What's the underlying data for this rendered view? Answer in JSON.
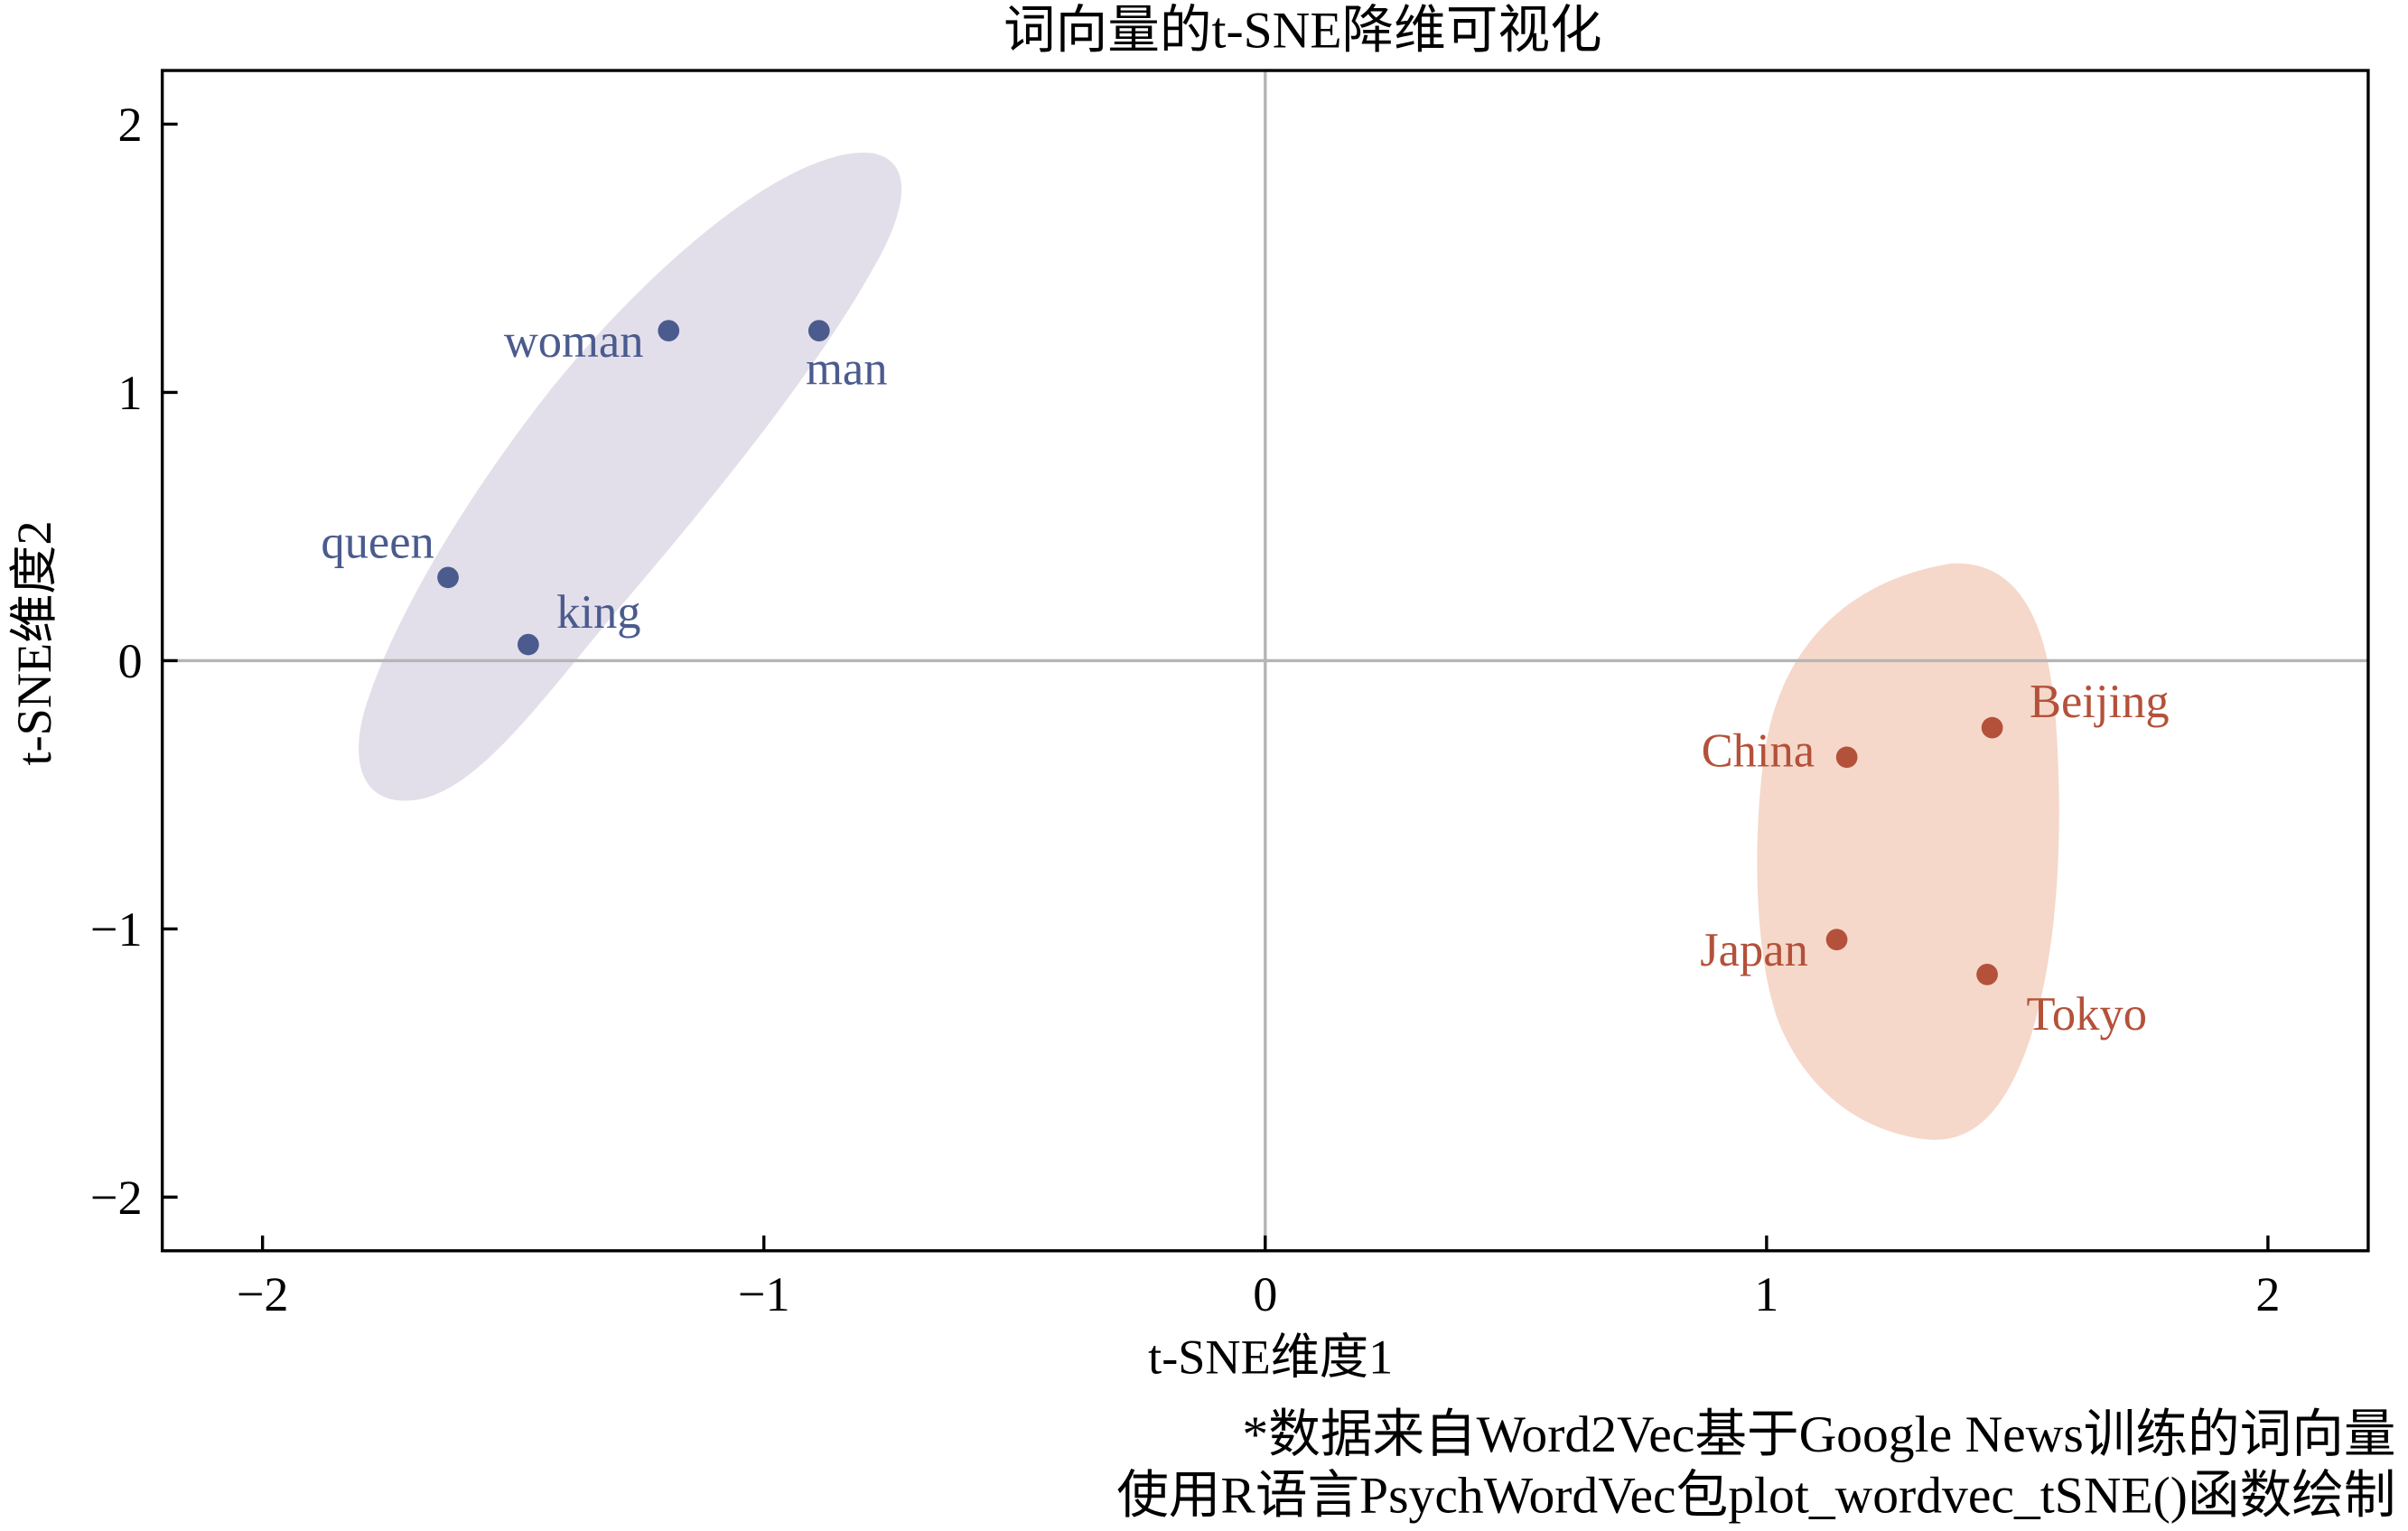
{
  "chart_data": {
    "type": "scatter",
    "title": "词向量的t-SNE降维可视化",
    "xlabel": "t-SNE维度1",
    "ylabel": "t-SNE维度2",
    "xlim": [
      -2.2,
      2.2
    ],
    "ylim": [
      -2.2,
      2.2
    ],
    "x_ticks": [
      -2,
      -1,
      0,
      1,
      2
    ],
    "x_tick_labels": [
      "−2",
      "−1",
      "0",
      "1",
      "2"
    ],
    "y_ticks": [
      2,
      1,
      0,
      -1,
      -2
    ],
    "y_tick_labels": [
      "2",
      "1",
      "0",
      "−1",
      "−2"
    ],
    "grid": false,
    "reference_lines": {
      "x": 0,
      "y": 0
    },
    "series": [
      {
        "color": "#4b5b8e",
        "hull_color": "#e3dfea",
        "points": [
          {
            "label": "woman",
            "x": -1.19,
            "y": 1.23
          },
          {
            "label": "man",
            "x": -0.89,
            "y": 1.23
          },
          {
            "label": "queen",
            "x": -1.63,
            "y": 0.31
          },
          {
            "label": "king",
            "x": -1.47,
            "y": 0.06
          }
        ]
      },
      {
        "color": "#b4513a",
        "hull_color": "#f5d8ca",
        "points": [
          {
            "label": "Beijing",
            "x": 1.45,
            "y": -0.25
          },
          {
            "label": "China",
            "x": 1.16,
            "y": -0.36
          },
          {
            "label": "Japan",
            "x": 1.14,
            "y": -1.04
          },
          {
            "label": "Tokyo",
            "x": 1.44,
            "y": -1.17
          }
        ]
      }
    ]
  },
  "caption": [
    "*数据来自Word2Vec基于Google News训练的词向量",
    "使用R语言PsychWordVec包plot_wordvec_tSNE()函数绘制"
  ]
}
